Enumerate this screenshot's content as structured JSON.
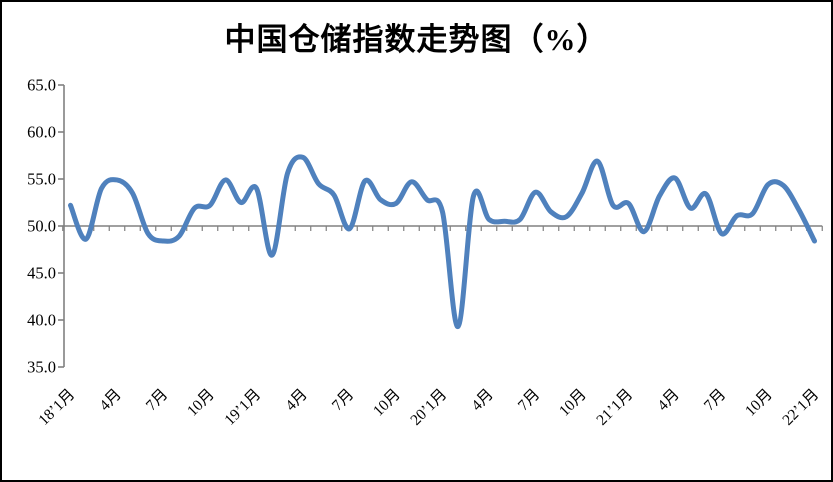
{
  "title": "中国仓储指数走势图（%）",
  "chart_data": {
    "type": "line",
    "title": "中国仓储指数走势图（%）",
    "series": [
      {
        "name": "中国仓储指数",
        "months": [
          "2018-01",
          "2018-02",
          "2018-03",
          "2018-04",
          "2018-05",
          "2018-06",
          "2018-07",
          "2018-08",
          "2018-09",
          "2018-10",
          "2018-11",
          "2018-12",
          "2019-01",
          "2019-02",
          "2019-03",
          "2019-04",
          "2019-05",
          "2019-06",
          "2019-07",
          "2019-08",
          "2019-09",
          "2019-10",
          "2019-11",
          "2019-12",
          "2020-01",
          "2020-02",
          "2020-03",
          "2020-04",
          "2020-05",
          "2020-06",
          "2020-07",
          "2020-08",
          "2020-09",
          "2020-10",
          "2020-11",
          "2020-12",
          "2021-01",
          "2021-02",
          "2021-03",
          "2021-04",
          "2021-05",
          "2021-06",
          "2021-07",
          "2021-08",
          "2021-09",
          "2021-10",
          "2021-11",
          "2021-12",
          "2022-01"
        ],
        "values": [
          52.2,
          48.6,
          54.0,
          54.9,
          53.5,
          49.2,
          48.4,
          48.9,
          51.9,
          52.2,
          54.9,
          52.5,
          54.0,
          46.9,
          55.6,
          57.3,
          54.5,
          53.3,
          49.7,
          54.8,
          52.8,
          52.4,
          54.7,
          52.8,
          51.5,
          39.3,
          53.2,
          50.7,
          50.5,
          50.7,
          53.6,
          51.5,
          51.0,
          53.5,
          56.9,
          52.2,
          52.4,
          49.4,
          53.2,
          55.1,
          51.9,
          53.4,
          49.2,
          51.1,
          51.3,
          54.4,
          54.3,
          51.7,
          48.4
        ]
      }
    ],
    "x_tick_labels": [
      "18’1月",
      "4月",
      "7月",
      "10月",
      "19’1月",
      "4月",
      "7月",
      "10月",
      "20’1月",
      "4月",
      "7月",
      "10月",
      "21’1月",
      "4月",
      "7月",
      "10月",
      "22’1月"
    ],
    "x_tick_label_every_n_months": 3,
    "y_tick_labels": [
      "65.0",
      "60.0",
      "55.0",
      "50.0",
      "45.0",
      "40.0",
      "35.0"
    ],
    "ylim": [
      35,
      65
    ],
    "y_tick_step": 5,
    "x_axis_cross_value": 50,
    "grid": false,
    "legend_position": "none",
    "line_smoothing": true,
    "colors": {
      "line": "#4F81BD",
      "axis": "#808080",
      "text": "#000000",
      "background": "#FFFFFF",
      "border": "#000000"
    }
  }
}
